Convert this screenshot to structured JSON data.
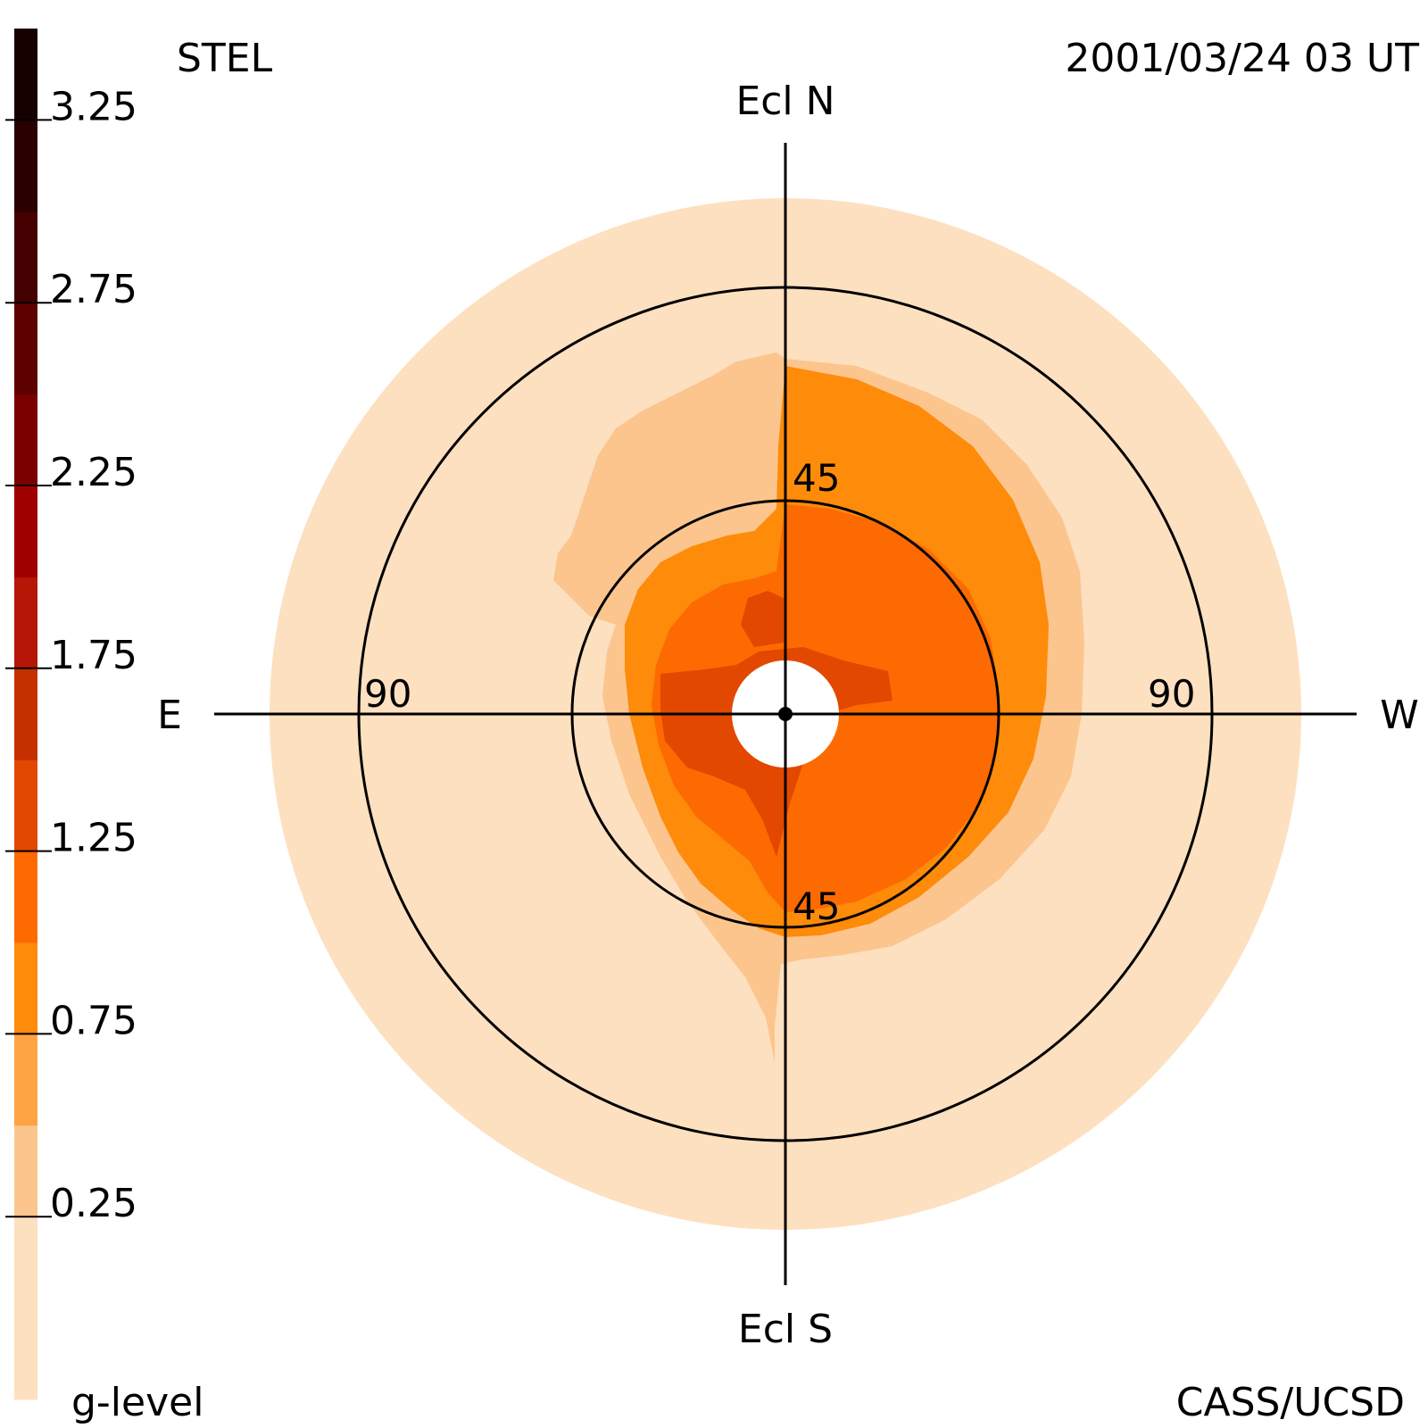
{
  "header": {
    "left": "STEL",
    "right": "2001/03/24 03 UT"
  },
  "footer": {
    "left": "g-level",
    "right": "CASS/UCSD"
  },
  "directions": {
    "north": "Ecl N",
    "south": "Ecl S",
    "east": "E",
    "west": "W"
  },
  "chart_data": {
    "type": "heatmap",
    "projection": "fisheye sky map, elongation from Sun at center",
    "colorbar": {
      "title": "g-level",
      "range": [
        -0.25,
        3.5
      ],
      "tick_labels": [
        "3.25",
        "2.75",
        "2.25",
        "1.75",
        "1.25",
        "0.75",
        "0.25"
      ],
      "tick_values": [
        3.25,
        2.75,
        2.25,
        1.75,
        1.25,
        0.75,
        0.25
      ],
      "levels": [
        {
          "min": -0.25,
          "max": 0.25,
          "color": "#fde0c0"
        },
        {
          "min": 0.25,
          "max": 0.5,
          "color": "#fcc58e"
        },
        {
          "min": 0.5,
          "max": 0.75,
          "color": "#fea444"
        },
        {
          "min": 0.75,
          "max": 1.0,
          "color": "#fe8b0a"
        },
        {
          "min": 1.0,
          "max": 1.25,
          "color": "#fd6a02"
        },
        {
          "min": 1.25,
          "max": 1.5,
          "color": "#e24800"
        },
        {
          "min": 1.5,
          "max": 1.75,
          "color": "#c43000"
        },
        {
          "min": 1.75,
          "max": 2.0,
          "color": "#b61606"
        },
        {
          "min": 2.0,
          "max": 2.25,
          "color": "#9e0000"
        },
        {
          "min": 2.25,
          "max": 2.5,
          "color": "#7a0000"
        },
        {
          "min": 2.5,
          "max": 2.75,
          "color": "#5c0000"
        },
        {
          "min": 2.75,
          "max": 3.0,
          "color": "#440000"
        },
        {
          "min": 3.0,
          "max": 3.25,
          "color": "#2a0000"
        },
        {
          "min": 3.25,
          "max": 3.5,
          "color": "#160000"
        }
      ]
    },
    "rings": [
      {
        "elongation_deg": 45,
        "labels": [
          "45",
          "45"
        ]
      },
      {
        "elongation_deg": 90,
        "labels": [
          "90",
          "90"
        ]
      }
    ],
    "regions": [
      {
        "name": "sky-disk",
        "outer_elongation_deg": 108,
        "g_level": 0.0
      },
      {
        "name": "outer-enhancement",
        "extent_deg": [
          20,
          65
        ],
        "g_level": 0.4
      },
      {
        "name": "mid-enhancement",
        "extent_deg": [
          15,
          55
        ],
        "g_level": 0.85
      },
      {
        "name": "inner-enhancement",
        "extent_deg": [
          10,
          45
        ],
        "g_level": 1.1
      },
      {
        "name": "core-enhancement",
        "extent_deg": [
          8,
          25
        ],
        "g_level": 1.35
      },
      {
        "name": "southern-tail",
        "extent_deg": [
          45,
          75
        ],
        "g_level": 0.4
      }
    ],
    "occulter": {
      "elongation_deg": 11
    }
  }
}
